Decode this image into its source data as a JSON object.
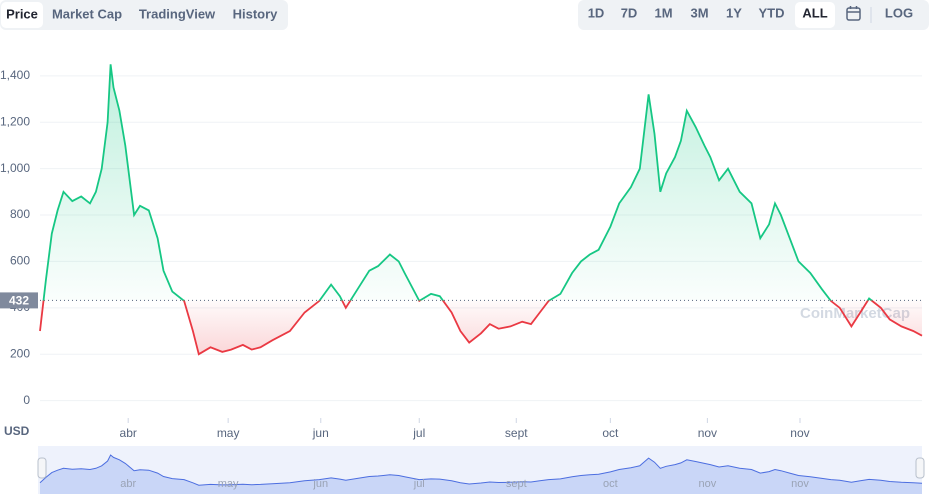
{
  "tabs": [
    "Price",
    "Market Cap",
    "TradingView",
    "History"
  ],
  "active_tab": 0,
  "ranges": [
    "1D",
    "7D",
    "1M",
    "3M",
    "1Y",
    "YTD",
    "ALL"
  ],
  "active_range": 6,
  "scale_button": "LOG",
  "chart_data": {
    "type": "line",
    "currency": "USD",
    "watermark": "CoinMarketCap",
    "color_above": "#16c784",
    "color_below": "#ea3943",
    "baseline": 432,
    "x": [
      0,
      2,
      4,
      6,
      8,
      11,
      14,
      17,
      19,
      21,
      23,
      24,
      25,
      27,
      29,
      32,
      34,
      37,
      40,
      42,
      45,
      49,
      52,
      54,
      58,
      62,
      65,
      69,
      72,
      75,
      79,
      82,
      85,
      90,
      95,
      99,
      102,
      104,
      108,
      112,
      115,
      119,
      122,
      124,
      129,
      133,
      136,
      140,
      143,
      146,
      150,
      153,
      156,
      160,
      164,
      167,
      170,
      173,
      177,
      181,
      184,
      187,
      190,
      194,
      197,
      201,
      204,
      207,
      209,
      211,
      213,
      216,
      218,
      220,
      223,
      226,
      228,
      231,
      234,
      238,
      242,
      245,
      248,
      250,
      252,
      255,
      258,
      262,
      266,
      269,
      272,
      276,
      279,
      282,
      286,
      289,
      293,
      297,
      300
    ],
    "values": [
      300,
      520,
      720,
      820,
      900,
      860,
      880,
      850,
      900,
      1000,
      1200,
      1450,
      1350,
      1250,
      1100,
      800,
      840,
      820,
      700,
      560,
      470,
      430,
      300,
      200,
      230,
      210,
      220,
      240,
      220,
      230,
      260,
      280,
      300,
      380,
      430,
      500,
      450,
      400,
      480,
      560,
      580,
      630,
      600,
      550,
      430,
      460,
      450,
      380,
      300,
      250,
      290,
      330,
      310,
      320,
      340,
      330,
      380,
      430,
      460,
      550,
      600,
      630,
      650,
      750,
      850,
      920,
      1000,
      1320,
      1150,
      900,
      980,
      1050,
      1120,
      1250,
      1180,
      1100,
      1050,
      950,
      1000,
      900,
      850,
      700,
      760,
      850,
      800,
      700,
      600,
      550,
      480,
      430,
      400,
      320,
      380,
      440,
      400,
      350,
      320,
      300,
      280
    ],
    "xlim": [
      0,
      300
    ],
    "xticks": [
      {
        "value": 30,
        "label": "abr"
      },
      {
        "value": 64,
        "label": "may"
      },
      {
        "value": 95.5,
        "label": "jun"
      },
      {
        "value": 129,
        "label": "jul"
      },
      {
        "value": 162,
        "label": "sept"
      },
      {
        "value": 194,
        "label": "oct"
      },
      {
        "value": 227,
        "label": "nov"
      },
      {
        "value": 258.5,
        "label": "nov"
      }
    ],
    "ylim": [
      -75,
      1490
    ],
    "yticks": [
      0,
      200,
      400,
      600,
      800,
      {
        "value": 1000,
        "label": "1,000"
      },
      {
        "value": 1200,
        "label": "1,200"
      },
      {
        "value": 1400,
        "label": "1,400"
      }
    ],
    "grid": true
  }
}
